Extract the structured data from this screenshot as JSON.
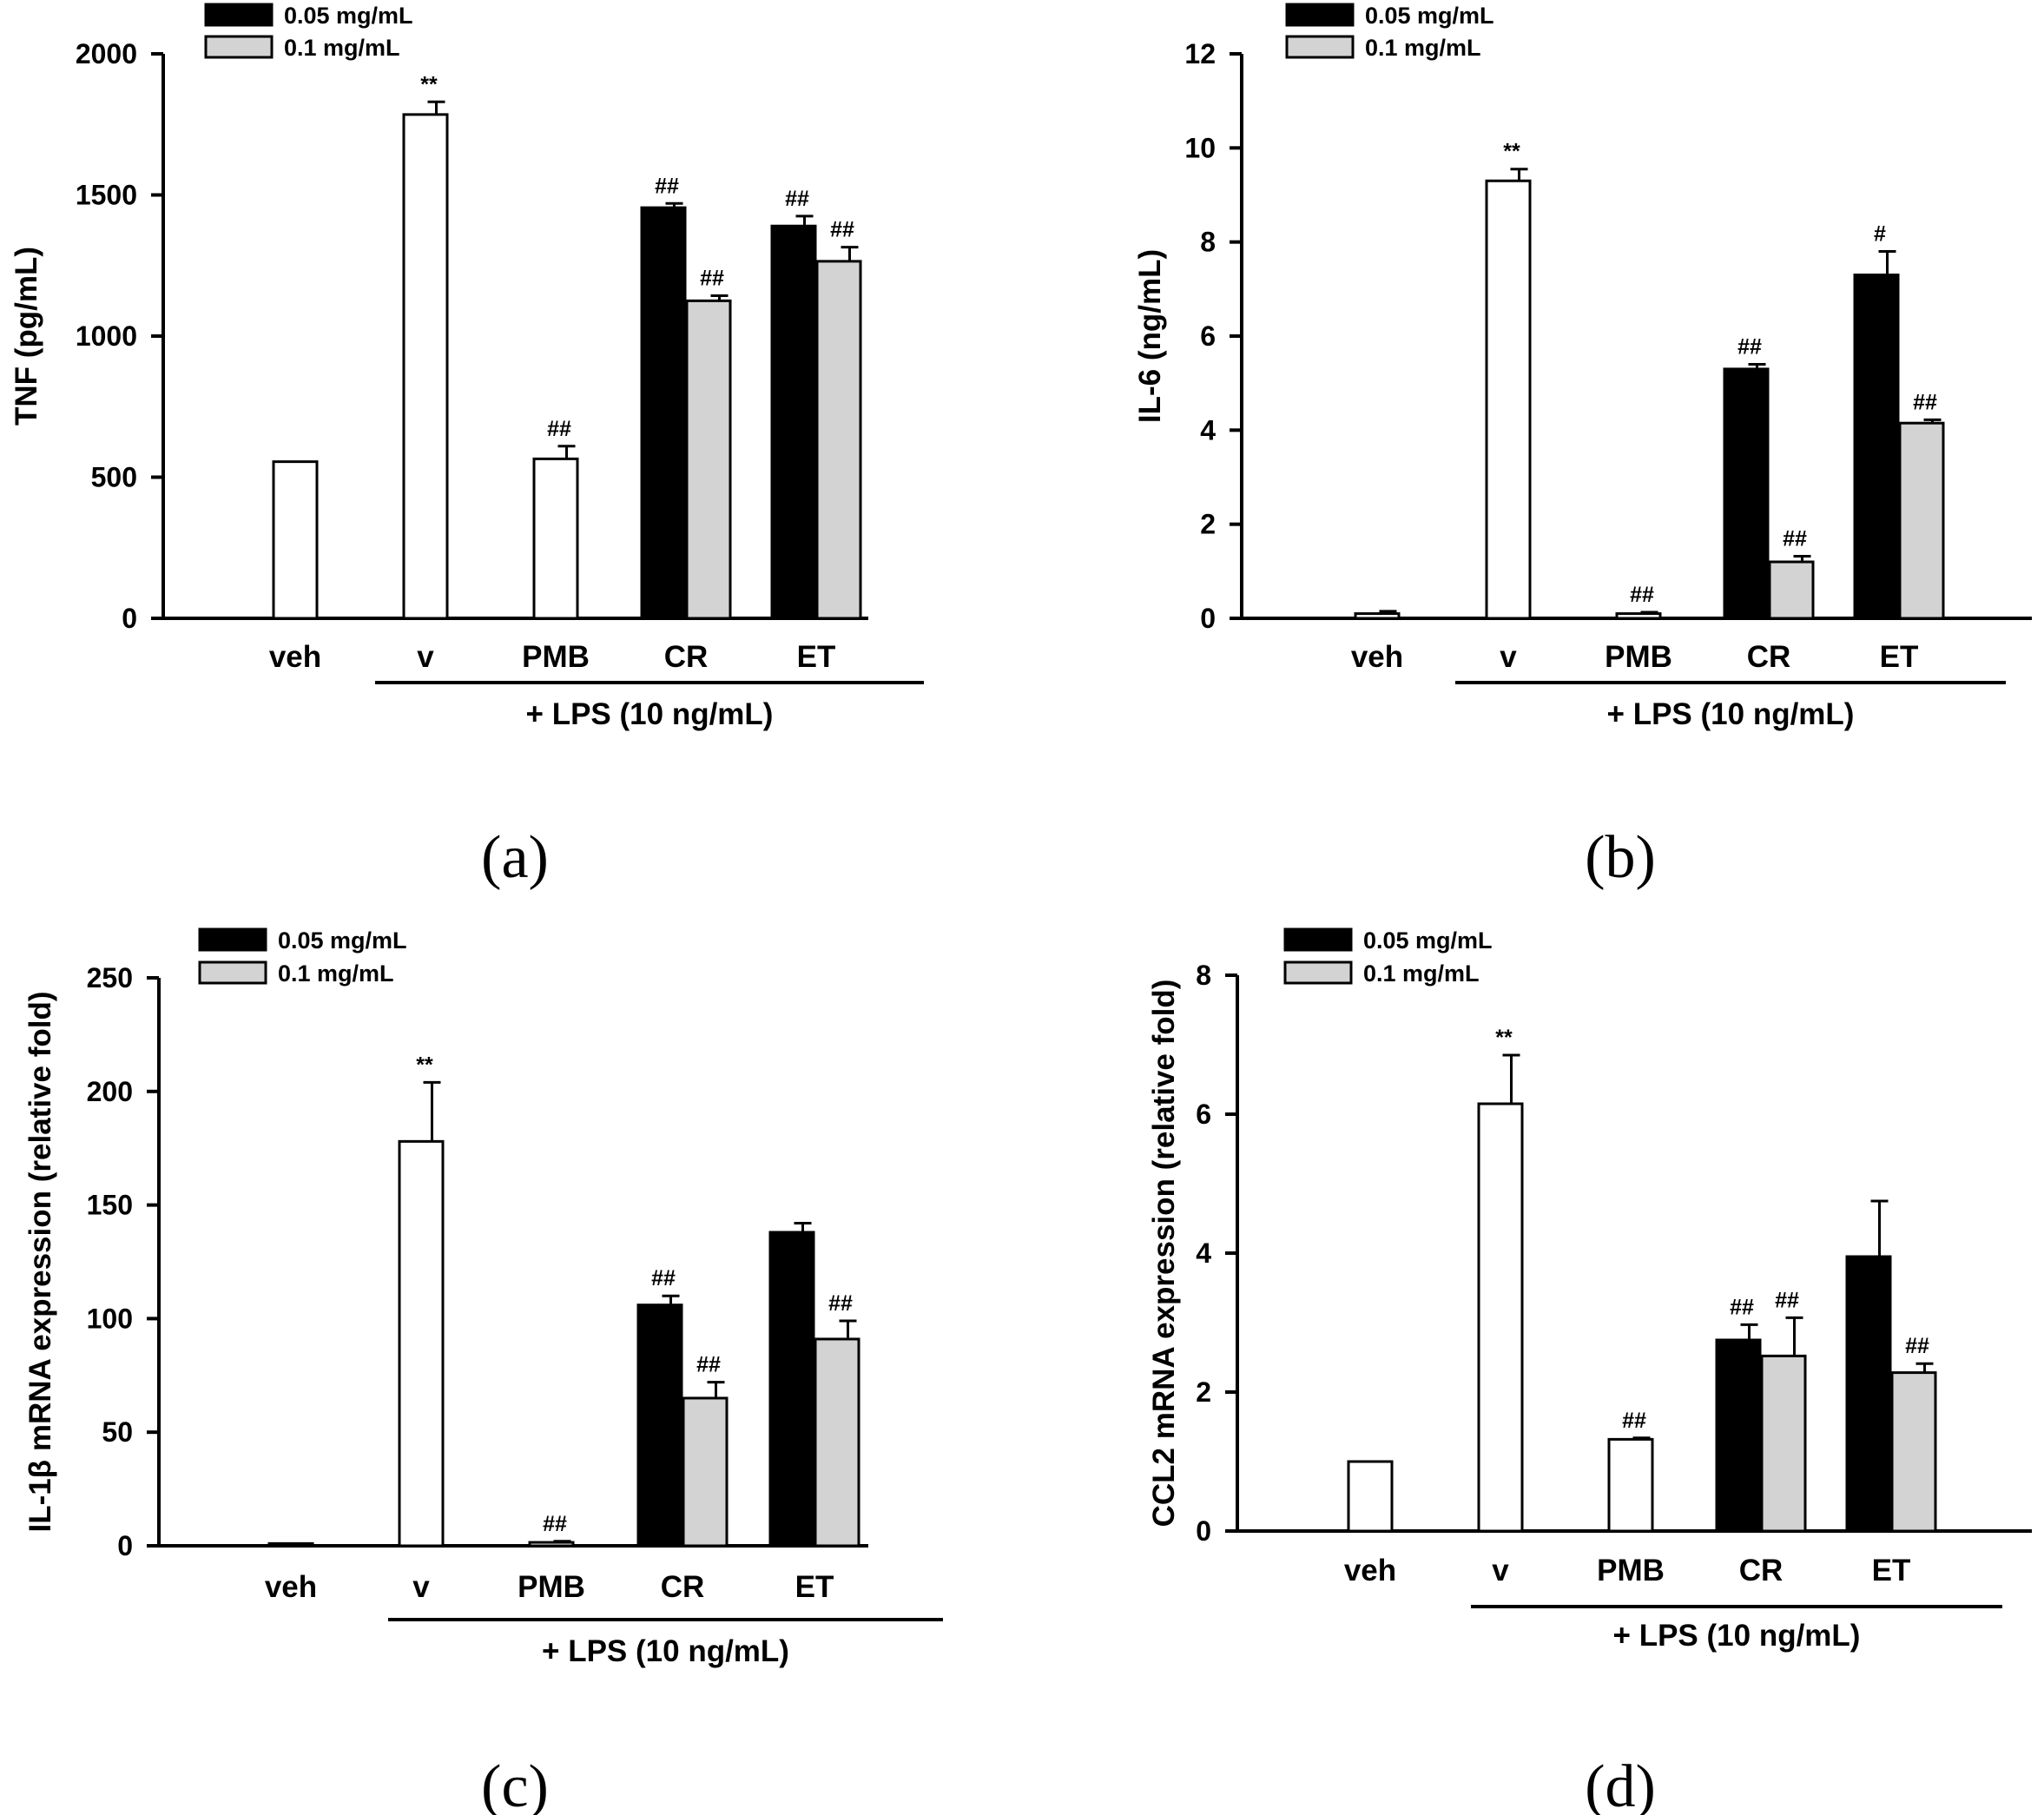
{
  "colors": {
    "black_bar": "#000000",
    "grey_bar": "#d3d3d3",
    "white_bar": "#ffffff",
    "axis": "#000000"
  },
  "chart_data": [
    {
      "type": "bar",
      "panel_label": "(a)",
      "ylabel": "TNF (pg/mL)",
      "ylim": [
        0,
        2000
      ],
      "yticks": [
        0,
        500,
        1000,
        1500,
        2000
      ],
      "categories": [
        "veh",
        "v",
        "PMB",
        "CR",
        "ET"
      ],
      "group_label": "+ LPS (10 ng/mL)",
      "legend": [
        "0.05 mg/mL",
        "0.1 mg/mL"
      ],
      "bars": [
        {
          "category": "veh",
          "series": "single",
          "value": 555,
          "error": 0,
          "sig": ""
        },
        {
          "category": "v",
          "series": "single",
          "value": 1785,
          "error": 45,
          "sig": "**"
        },
        {
          "category": "PMB",
          "series": "single",
          "value": 565,
          "error": 45,
          "sig": "##"
        },
        {
          "category": "CR",
          "series": "0.05 mg/mL",
          "value": 1455,
          "error": 15,
          "sig": "##"
        },
        {
          "category": "CR",
          "series": "0.1 mg/mL",
          "value": 1125,
          "error": 18,
          "sig": "##"
        },
        {
          "category": "ET",
          "series": "0.05 mg/mL",
          "value": 1390,
          "error": 35,
          "sig": "##"
        },
        {
          "category": "ET",
          "series": "0.1 mg/mL",
          "value": 1265,
          "error": 50,
          "sig": "##"
        }
      ]
    },
    {
      "type": "bar",
      "panel_label": "(b)",
      "ylabel": "IL-6 (ng/mL)",
      "ylim": [
        0,
        12
      ],
      "yticks": [
        0,
        2,
        4,
        6,
        8,
        10,
        12
      ],
      "categories": [
        "veh",
        "v",
        "PMB",
        "CR",
        "ET"
      ],
      "group_label": "+ LPS (10 ng/mL)",
      "legend": [
        "0.05 mg/mL",
        "0.1 mg/mL"
      ],
      "bars": [
        {
          "category": "veh",
          "series": "single",
          "value": 0.1,
          "error": 0.05,
          "sig": ""
        },
        {
          "category": "v",
          "series": "single",
          "value": 9.3,
          "error": 0.25,
          "sig": "**"
        },
        {
          "category": "PMB",
          "series": "single",
          "value": 0.1,
          "error": 0.03,
          "sig": "##"
        },
        {
          "category": "CR",
          "series": "0.05 mg/mL",
          "value": 5.3,
          "error": 0.1,
          "sig": "##"
        },
        {
          "category": "CR",
          "series": "0.1 mg/mL",
          "value": 1.2,
          "error": 0.12,
          "sig": "##"
        },
        {
          "category": "ET",
          "series": "0.05 mg/mL",
          "value": 7.3,
          "error": 0.5,
          "sig": "#"
        },
        {
          "category": "ET",
          "series": "0.1 mg/mL",
          "value": 4.15,
          "error": 0.07,
          "sig": "##"
        }
      ]
    },
    {
      "type": "bar",
      "panel_label": "(c)",
      "ylabel": "IL-1β mRNA expression (relative fold)",
      "ylim": [
        0,
        250
      ],
      "yticks": [
        0,
        50,
        100,
        150,
        200,
        250
      ],
      "categories": [
        "veh",
        "v",
        "PMB",
        "CR",
        "ET"
      ],
      "group_label": "+ LPS (10 ng/mL)",
      "legend": [
        "0.05 mg/mL",
        "0.1 mg/mL"
      ],
      "bars": [
        {
          "category": "veh",
          "series": "single",
          "value": 1,
          "error": 0,
          "sig": ""
        },
        {
          "category": "v",
          "series": "single",
          "value": 178,
          "error": 26,
          "sig": "**"
        },
        {
          "category": "PMB",
          "series": "single",
          "value": 1.5,
          "error": 0.5,
          "sig": "##"
        },
        {
          "category": "CR",
          "series": "0.05 mg/mL",
          "value": 106,
          "error": 4,
          "sig": "##"
        },
        {
          "category": "CR",
          "series": "0.1 mg/mL",
          "value": 65,
          "error": 7,
          "sig": "##"
        },
        {
          "category": "ET",
          "series": "0.05 mg/mL",
          "value": 138,
          "error": 4,
          "sig": ""
        },
        {
          "category": "ET",
          "series": "0.1 mg/mL",
          "value": 91,
          "error": 8,
          "sig": "##"
        }
      ]
    },
    {
      "type": "bar",
      "panel_label": "(d)",
      "ylabel": "CCL2 mRNA expression (relative fold)",
      "ylim": [
        0,
        8
      ],
      "yticks": [
        0,
        2,
        4,
        6,
        8
      ],
      "categories": [
        "veh",
        "v",
        "PMB",
        "CR",
        "ET"
      ],
      "group_label": "+ LPS (10 ng/mL)",
      "legend": [
        "0.05 mg/mL",
        "0.1 mg/mL"
      ],
      "bars": [
        {
          "category": "veh",
          "series": "single",
          "value": 1.0,
          "error": 0,
          "sig": ""
        },
        {
          "category": "v",
          "series": "single",
          "value": 6.15,
          "error": 0.7,
          "sig": "**"
        },
        {
          "category": "PMB",
          "series": "single",
          "value": 1.32,
          "error": 0.02,
          "sig": "##"
        },
        {
          "category": "CR",
          "series": "0.05 mg/mL",
          "value": 2.75,
          "error": 0.22,
          "sig": "##"
        },
        {
          "category": "CR",
          "series": "0.1 mg/mL",
          "value": 2.52,
          "error": 0.55,
          "sig": "##"
        },
        {
          "category": "ET",
          "series": "0.05 mg/mL",
          "value": 3.95,
          "error": 0.8,
          "sig": ""
        },
        {
          "category": "ET",
          "series": "0.1 mg/mL",
          "value": 2.28,
          "error": 0.13,
          "sig": "##"
        }
      ]
    }
  ]
}
